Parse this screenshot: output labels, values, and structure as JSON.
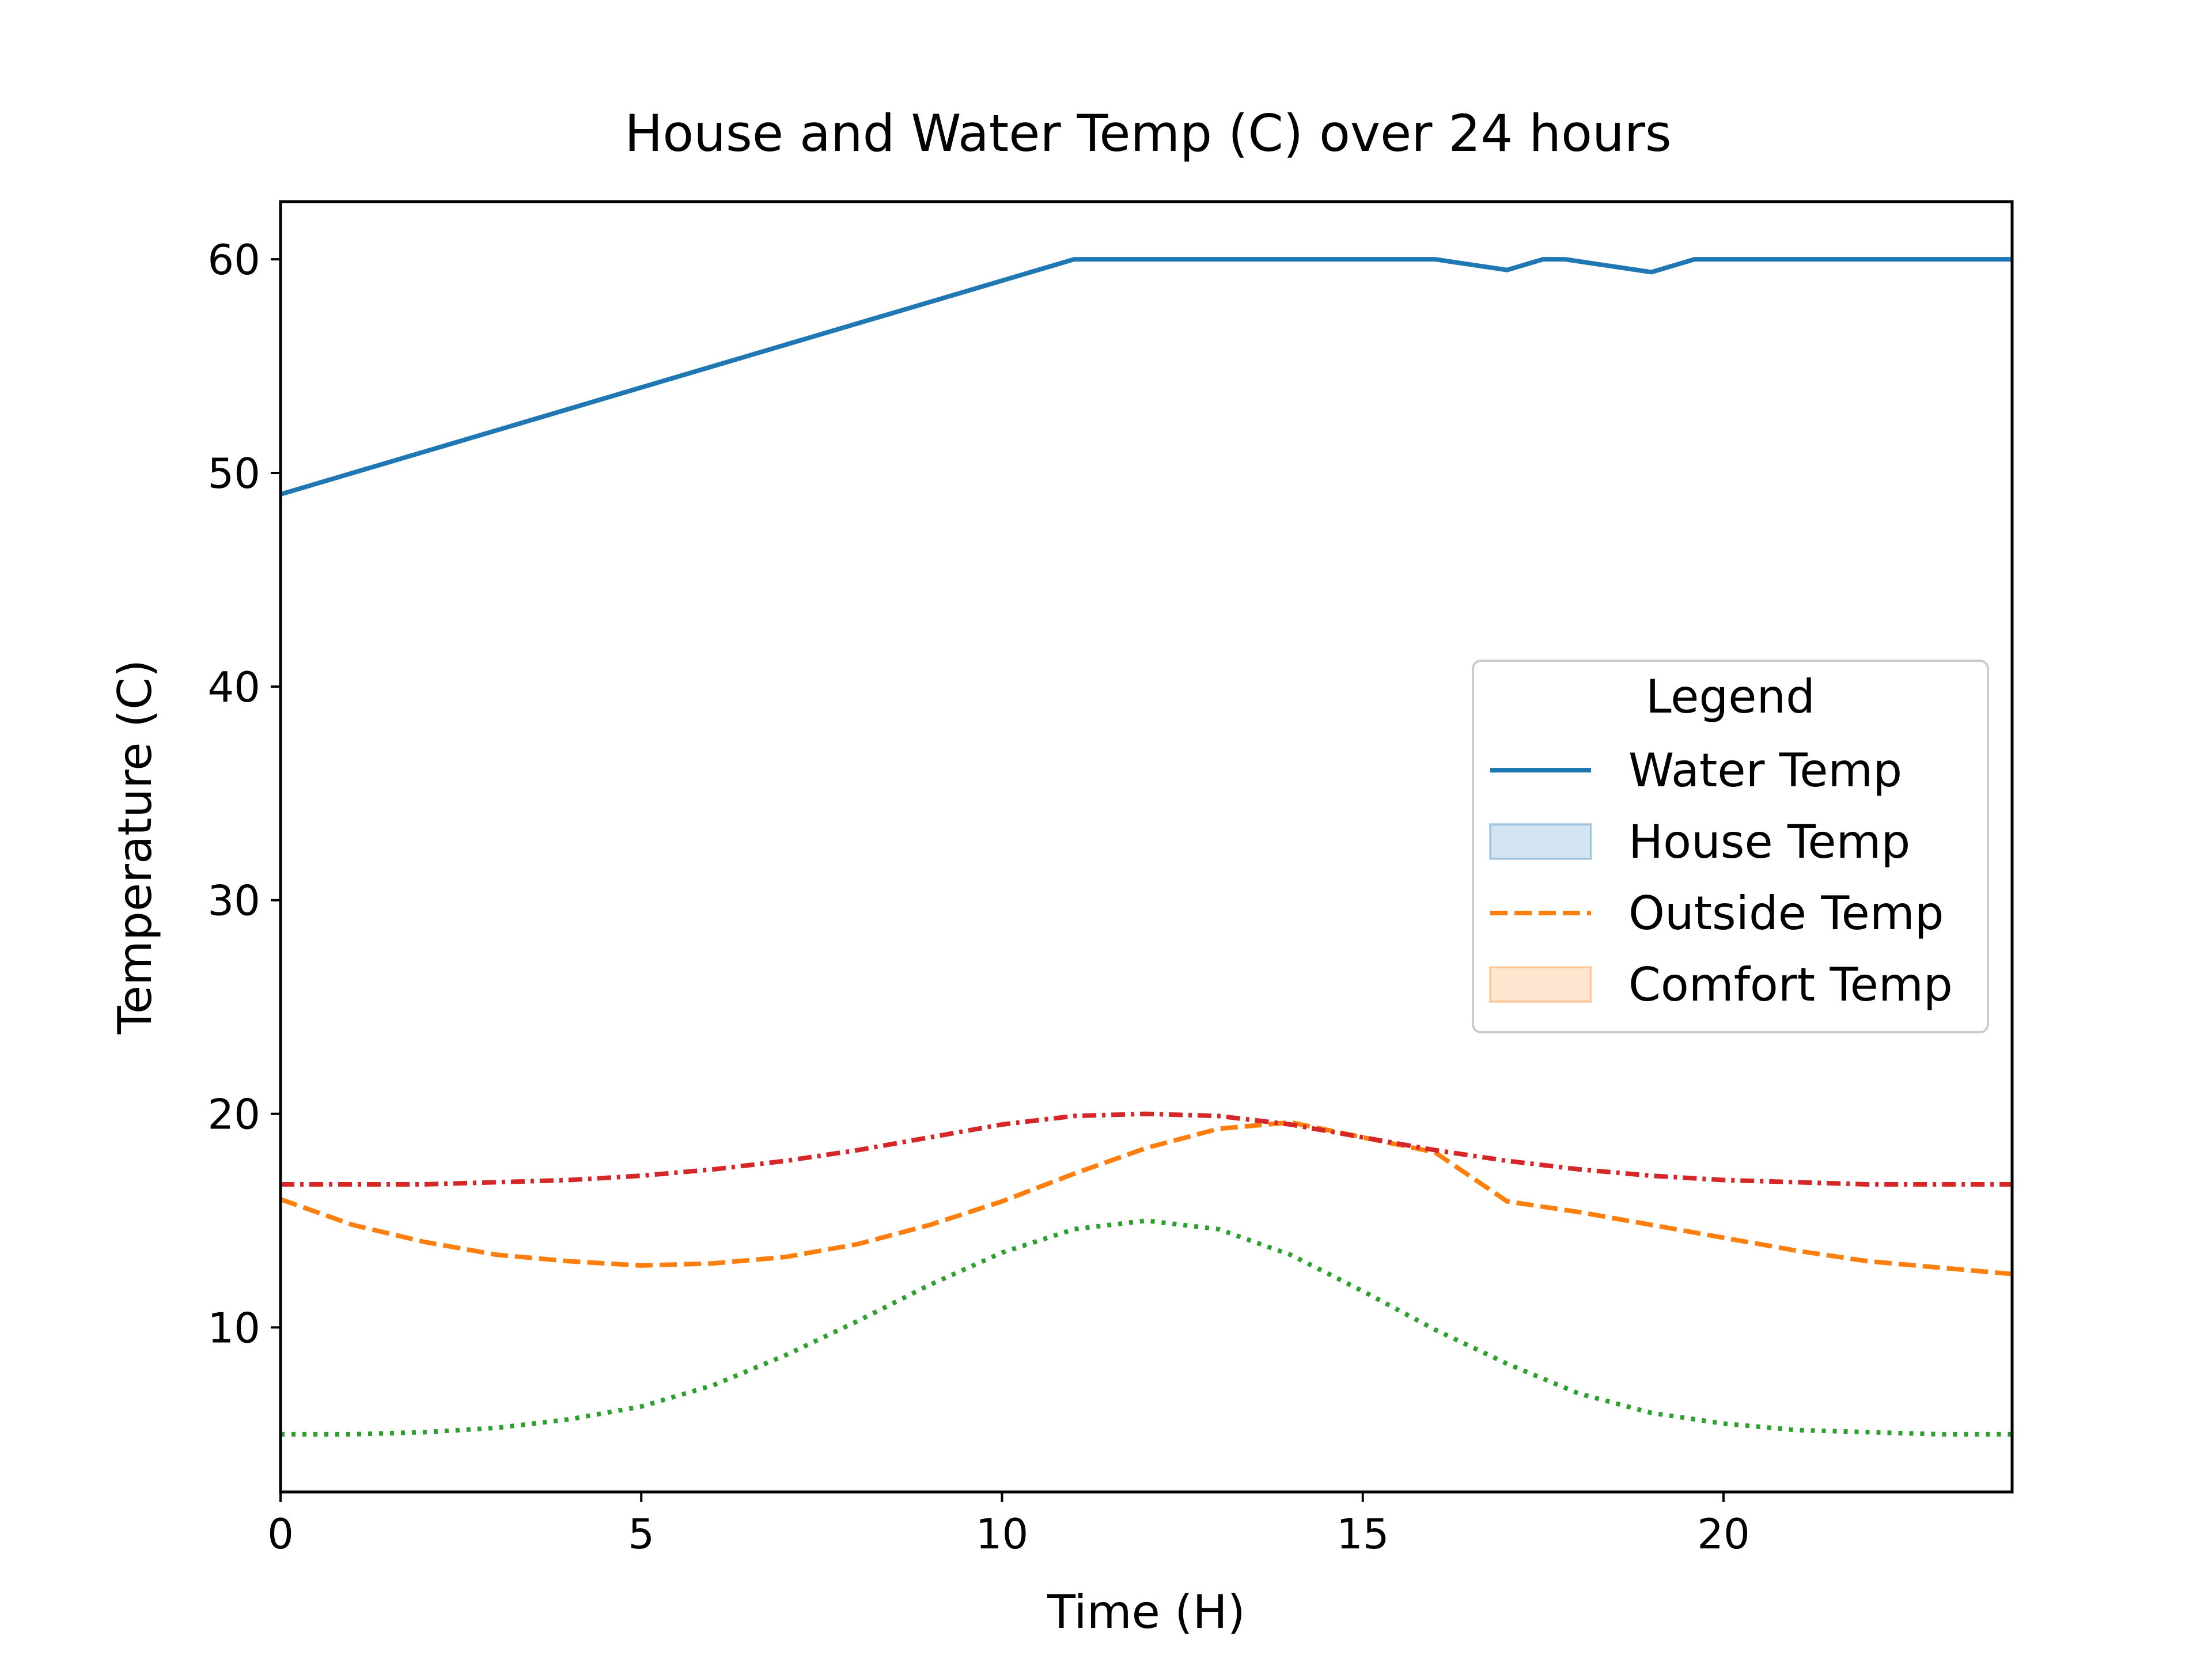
{
  "chart_data": {
    "type": "line",
    "title": "House and Water Temp (C) over 24 hours",
    "xlabel": "Time (H)",
    "ylabel": "Temperature (C)",
    "xlim": [
      0,
      24
    ],
    "ylim": [
      2.3,
      62.7
    ],
    "xticks": [
      0,
      5,
      10,
      15,
      20
    ],
    "yticks": [
      10,
      20,
      30,
      40,
      50,
      60
    ],
    "grid": false,
    "legend": {
      "title": "Legend",
      "placement": "center-right",
      "entries": [
        {
          "label": "Water Temp",
          "kind": "line",
          "color": "#1f77b4",
          "dash": "solid"
        },
        {
          "label": "House Temp",
          "kind": "patch",
          "color": "#1f77b4"
        },
        {
          "label": "Outside Temp",
          "kind": "line",
          "color": "#ff7f0e",
          "dash": "dashed"
        },
        {
          "label": "Comfort Temp",
          "kind": "patch",
          "color": "#ff7f0e"
        }
      ]
    },
    "series": [
      {
        "color": "#1f77b4",
        "style": "solid",
        "x": [
          0,
          11,
          11.5,
          12,
          13,
          14,
          15,
          16,
          17,
          17.5,
          17.8,
          19,
          19.6,
          20,
          22,
          24
        ],
        "y": [
          49,
          60,
          60,
          60,
          60,
          60,
          60,
          60,
          59.5,
          60,
          60,
          59.4,
          60,
          60,
          60,
          60
        ]
      },
      {
        "color": "#ff7f0e",
        "style": "dashed",
        "x": [
          0,
          1,
          2,
          3,
          4,
          5,
          6,
          7,
          8,
          9,
          10,
          11,
          12,
          13,
          14,
          15,
          16,
          17,
          18,
          19,
          20,
          21,
          22,
          23,
          24
        ],
        "y": [
          16,
          14.8,
          14,
          13.4,
          13.1,
          12.9,
          13,
          13.3,
          13.9,
          14.8,
          15.9,
          17.2,
          18.4,
          19.3,
          19.6,
          18.9,
          18.2,
          15.9,
          15.4,
          14.8,
          14.2,
          13.6,
          13.1,
          12.8,
          12.5
        ]
      },
      {
        "color": "#d62728",
        "style": "dashdot",
        "x": [
          0,
          1,
          2,
          3,
          4,
          5,
          6,
          7,
          8,
          9,
          10,
          11,
          12,
          13,
          14,
          15,
          16,
          17,
          18,
          19,
          20,
          21,
          22,
          23,
          24
        ],
        "y": [
          16.7,
          16.7,
          16.7,
          16.8,
          16.9,
          17.1,
          17.4,
          17.8,
          18.3,
          18.9,
          19.5,
          19.9,
          20,
          19.9,
          19.5,
          18.9,
          18.3,
          17.8,
          17.4,
          17.1,
          16.9,
          16.8,
          16.7,
          16.7,
          16.7
        ]
      },
      {
        "color": "#2ca02c",
        "style": "dotted",
        "x": [
          0,
          1,
          2,
          3,
          4,
          5,
          6,
          7,
          8,
          9,
          10,
          11,
          12,
          13,
          14,
          15,
          16,
          17,
          18,
          19,
          20,
          21,
          22,
          23,
          24
        ],
        "y": [
          5,
          5,
          5.1,
          5.3,
          5.7,
          6.3,
          7.3,
          8.7,
          10.3,
          12,
          13.5,
          14.6,
          15,
          14.6,
          13.4,
          11.7,
          9.9,
          8.3,
          6.9,
          6,
          5.5,
          5.2,
          5.1,
          5,
          5
        ]
      }
    ]
  }
}
